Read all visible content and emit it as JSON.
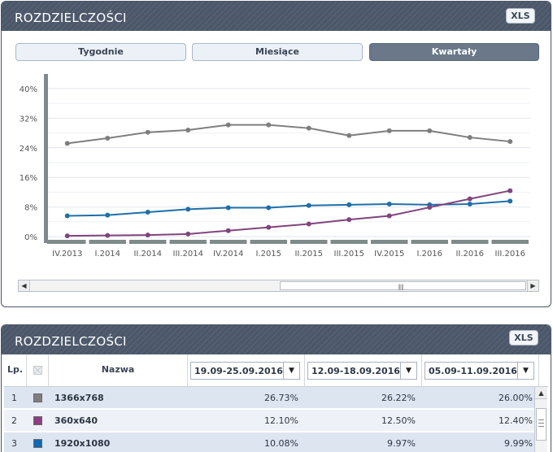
{
  "top_panel": {
    "title": "ROZDZIELCZOŚCI",
    "xls_label": "XLS",
    "tabs": [
      {
        "label": "Tygodnie",
        "active": false
      },
      {
        "label": "Miesiące",
        "active": false
      },
      {
        "label": "Kwartały",
        "active": true
      }
    ]
  },
  "chart_data": {
    "type": "line",
    "categories": [
      "IV.2013",
      "I.2014",
      "II.2014",
      "III.2014",
      "IV.2014",
      "I.2015",
      "II.2015",
      "III.2015",
      "IV.2015",
      "I.2016",
      "II.2016",
      "III.2016"
    ],
    "y_ticks": [
      "0%",
      "8%",
      "16%",
      "24%",
      "32%",
      "40%"
    ],
    "ylim": [
      0,
      40
    ],
    "grid": true,
    "series": [
      {
        "color": "#7e7e7e",
        "values": [
          25.2,
          26.6,
          28.2,
          28.8,
          30.2,
          30.2,
          29.3,
          27.3,
          28.6,
          28.6,
          26.8,
          25.7
        ]
      },
      {
        "color": "#1f6fa8",
        "values": [
          5.6,
          5.8,
          6.6,
          7.4,
          7.8,
          7.8,
          8.4,
          8.6,
          8.8,
          8.6,
          8.8,
          9.6
        ]
      },
      {
        "color": "#80457e",
        "values": [
          0.2,
          0.3,
          0.4,
          0.7,
          1.6,
          2.5,
          3.4,
          4.6,
          5.6,
          7.9,
          10.2,
          12.4
        ]
      }
    ]
  },
  "bottom_panel": {
    "title": "ROZDZIELCZOŚCI",
    "xls_label": "XLS",
    "columns": {
      "lp": "Lp.",
      "name": "Nazwa",
      "weeks": [
        "19.09-25.09.2016",
        "12.09-18.09.2016",
        "05.09-11.09.2016"
      ]
    },
    "rows": [
      {
        "lp": "1",
        "color": "#7e7e7e",
        "name": "1366x768",
        "values": [
          "26.73%",
          "26.22%",
          "26.00%"
        ]
      },
      {
        "lp": "2",
        "color": "#8b3f84",
        "name": "360x640",
        "values": [
          "12.10%",
          "12.50%",
          "12.40%"
        ]
      },
      {
        "lp": "3",
        "color": "#1268b3",
        "name": "1920x1080",
        "values": [
          "10.08%",
          "9.97%",
          "9.99%"
        ]
      }
    ]
  }
}
